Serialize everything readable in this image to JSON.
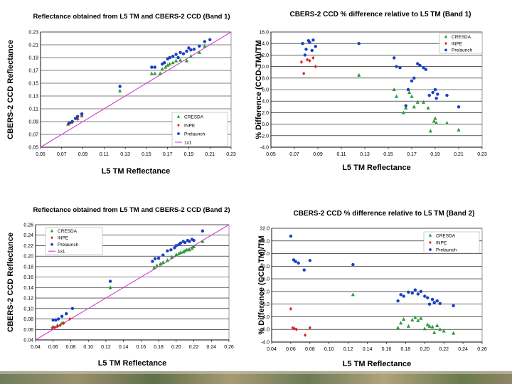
{
  "colors": {
    "cresda": "#2e9a3a",
    "inpe": "#e02020",
    "prelaunch": "#1a3fc4",
    "onexone": "#d040d0",
    "grid": "#000000",
    "plot_bg": "#ffffff"
  },
  "chart_data": [
    {
      "type": "scatter",
      "title": "Reflectance obtained from L5 TM and CBERS-2 CCD (Band 1)",
      "xlabel": "L5 TM Reflectance",
      "ylabel": "CBERS-2 CCD Reflectance",
      "xlim": [
        0.05,
        0.23
      ],
      "ylim": [
        0.05,
        0.23
      ],
      "xticks": [
        "0.05",
        "0.07",
        "0.09",
        "0.11",
        "0.13",
        "0.15",
        "0.17",
        "0.19",
        "0.21",
        "0.23"
      ],
      "yticks": [
        "0.05",
        "0.07",
        "0.09",
        "0.11",
        "0.13",
        "0.15",
        "0.17",
        "0.19",
        "0.21",
        "0.23"
      ],
      "legend": {
        "position": "bottom-right",
        "entries": [
          "CRESDA",
          "INPE",
          "Prelaunch",
          "1x1"
        ]
      },
      "line_1x1": true,
      "series": [
        {
          "name": "CRESDA",
          "marker": "triangle",
          "x": [
            0.076,
            0.079,
            0.085,
            0.089,
            0.125,
            0.155,
            0.158,
            0.163,
            0.165,
            0.168,
            0.17,
            0.172,
            0.175,
            0.178,
            0.182,
            0.188,
            0.192,
            0.2,
            0.205
          ],
          "y": [
            0.086,
            0.089,
            0.095,
            0.099,
            0.138,
            0.165,
            0.165,
            0.165,
            0.172,
            0.175,
            0.178,
            0.18,
            0.182,
            0.185,
            0.186,
            0.185,
            0.192,
            0.198,
            0.208
          ]
        },
        {
          "name": "INPE",
          "marker": "diamond",
          "x": [
            0.076,
            0.078,
            0.08,
            0.085,
            0.089
          ],
          "y": [
            0.086,
            0.088,
            0.09,
            0.094,
            0.1
          ]
        },
        {
          "name": "Prelaunch",
          "marker": "circle",
          "x": [
            0.077,
            0.08,
            0.083,
            0.085,
            0.089,
            0.125,
            0.155,
            0.158,
            0.165,
            0.167,
            0.17,
            0.172,
            0.175,
            0.178,
            0.18,
            0.182,
            0.185,
            0.188,
            0.19,
            0.192,
            0.195,
            0.2,
            0.205,
            0.21
          ],
          "y": [
            0.088,
            0.09,
            0.095,
            0.098,
            0.102,
            0.145,
            0.175,
            0.175,
            0.18,
            0.182,
            0.188,
            0.19,
            0.192,
            0.195,
            0.19,
            0.198,
            0.196,
            0.2,
            0.205,
            0.202,
            0.203,
            0.208,
            0.215,
            0.218
          ]
        }
      ]
    },
    {
      "type": "scatter",
      "title": "CBERS-2 CCD % difference relative to L5 TM (Band 1)",
      "xlabel": "L5 TM Reflectance",
      "ylabel": "% Difference (CCD-TM)/TM",
      "xlim": [
        0.05,
        0.23
      ],
      "ylim": [
        -4.0,
        16.0
      ],
      "xticks": [
        "0.05",
        "0.07",
        "0.09",
        "0.11",
        "0.13",
        "0.15",
        "0.17",
        "0.19",
        "0.21",
        "0.23"
      ],
      "yticks": [
        "-4.0",
        "-2.0",
        "0.0",
        "2.0",
        "4.0",
        "6.0",
        "8.0",
        "10.0",
        "12.0",
        "14.0",
        "16.0"
      ],
      "legend": {
        "position": "top-right",
        "entries": [
          "CRESDA",
          "INPE",
          "Prelaunch"
        ]
      },
      "line_1x1": false,
      "series": [
        {
          "name": "CRESDA",
          "marker": "triangle",
          "x": [
            0.125,
            0.155,
            0.157,
            0.163,
            0.165,
            0.168,
            0.17,
            0.172,
            0.175,
            0.18,
            0.184,
            0.186,
            0.189,
            0.19,
            0.191,
            0.2,
            0.21
          ],
          "y": [
            8.5,
            6.0,
            4.8,
            2.0,
            2.8,
            5.5,
            4.8,
            3.0,
            3.8,
            3.8,
            2.8,
            -1.2,
            0.5,
            1.0,
            0.2,
            0.2,
            -1.0
          ]
        },
        {
          "name": "INPE",
          "marker": "diamond",
          "x": [
            0.076,
            0.078,
            0.081,
            0.083,
            0.086,
            0.088
          ],
          "y": [
            10.8,
            8.8,
            11.2,
            11.0,
            11.5,
            10.0
          ]
        },
        {
          "name": "Prelaunch",
          "marker": "circle",
          "x": [
            0.077,
            0.079,
            0.08,
            0.082,
            0.083,
            0.085,
            0.086,
            0.088,
            0.125,
            0.155,
            0.157,
            0.16,
            0.165,
            0.167,
            0.17,
            0.172,
            0.175,
            0.177,
            0.18,
            0.182,
            0.185,
            0.188,
            0.19,
            0.191,
            0.192,
            0.2,
            0.21
          ],
          "y": [
            14.0,
            12.0,
            13.0,
            14.5,
            14.2,
            12.8,
            14.6,
            13.5,
            14.0,
            11.5,
            10.0,
            9.8,
            3.2,
            6.0,
            7.5,
            8.0,
            10.5,
            10.2,
            9.8,
            9.5,
            5.0,
            5.5,
            6.0,
            4.5,
            5.2,
            5.0,
            3.0
          ]
        }
      ]
    },
    {
      "type": "scatter",
      "title": "Reflectance obtained from L5 TM and CBERS-2 CCD (Band 2)",
      "xlabel": "L5 TM Reflectance",
      "ylabel": "CBERS-2 CCD Reflectance",
      "xlim": [
        0.04,
        0.26
      ],
      "ylim": [
        0.04,
        0.26
      ],
      "xticks": [
        "0.04",
        "0.06",
        "0.08",
        "0.10",
        "0.12",
        "0.14",
        "0.16",
        "0.18",
        "0.20",
        "0.22",
        "0.24",
        "0.26"
      ],
      "yticks": [
        "0.04",
        "0.06",
        "0.08",
        "0.10",
        "0.12",
        "0.14",
        "0.16",
        "0.18",
        "0.20",
        "0.22",
        "0.24",
        "0.26"
      ],
      "legend": {
        "position": "top-left",
        "entries": [
          "CRESDA",
          "INPE",
          "Prelaunch",
          "1x1"
        ]
      },
      "line_1x1": true,
      "series": [
        {
          "name": "CRESDA",
          "marker": "triangle",
          "x": [
            0.06,
            0.065,
            0.07,
            0.125,
            0.175,
            0.178,
            0.182,
            0.185,
            0.19,
            0.195,
            0.2,
            0.203,
            0.205,
            0.208,
            0.21,
            0.212,
            0.215,
            0.218,
            0.22,
            0.23
          ],
          "y": [
            0.065,
            0.068,
            0.072,
            0.14,
            0.178,
            0.182,
            0.185,
            0.188,
            0.192,
            0.198,
            0.203,
            0.205,
            0.207,
            0.208,
            0.21,
            0.212,
            0.212,
            0.215,
            0.218,
            0.228
          ]
        },
        {
          "name": "INPE",
          "marker": "diamond",
          "x": [
            0.059,
            0.062,
            0.065,
            0.068,
            0.072,
            0.079
          ],
          "y": [
            0.063,
            0.064,
            0.066,
            0.068,
            0.072,
            0.08
          ]
        },
        {
          "name": "Prelaunch",
          "marker": "circle",
          "x": [
            0.06,
            0.063,
            0.066,
            0.07,
            0.075,
            0.082,
            0.125,
            0.173,
            0.176,
            0.18,
            0.185,
            0.19,
            0.194,
            0.198,
            0.2,
            0.203,
            0.205,
            0.208,
            0.21,
            0.213,
            0.215,
            0.218,
            0.22,
            0.23
          ],
          "y": [
            0.078,
            0.078,
            0.08,
            0.085,
            0.09,
            0.1,
            0.152,
            0.19,
            0.195,
            0.196,
            0.202,
            0.21,
            0.212,
            0.216,
            0.22,
            0.222,
            0.225,
            0.228,
            0.226,
            0.23,
            0.228,
            0.232,
            0.23,
            0.248
          ]
        }
      ]
    },
    {
      "type": "scatter",
      "title": "CBERS-2 CCD % difference relative to L5 TM (Band 2)",
      "xlabel": "L5 TM Reflectance",
      "ylabel": "% Difference (CCD-TM)/TM",
      "xlim": [
        0.04,
        0.26
      ],
      "ylim": [
        -4.0,
        32.0
      ],
      "xticks": [
        "0.04",
        "0.06",
        "0.08",
        "0.10",
        "0.12",
        "0.14",
        "0.16",
        "0.18",
        "0.20",
        "0.22",
        "0.24",
        "0.26"
      ],
      "yticks": [
        "-4.0",
        "0.0",
        "4.0",
        "8.0",
        "12.0",
        "16.0",
        "20.0",
        "24.0",
        "28.0",
        "32.0"
      ],
      "legend": {
        "position": "top-right",
        "entries": [
          "CRESDA",
          "INPE",
          "Prelaunch"
        ]
      },
      "line_1x1": false,
      "series": [
        {
          "name": "CRESDA",
          "marker": "triangle",
          "x": [
            0.125,
            0.172,
            0.175,
            0.178,
            0.183,
            0.187,
            0.19,
            0.193,
            0.196,
            0.2,
            0.203,
            0.205,
            0.208,
            0.21,
            0.213,
            0.216,
            0.22,
            0.23
          ],
          "y": [
            11.0,
            0.5,
            2.0,
            3.2,
            1.0,
            3.0,
            3.8,
            2.8,
            3.5,
            0.2,
            1.5,
            1.0,
            0.8,
            -1.0,
            1.2,
            0.0,
            -0.5,
            -1.2
          ]
        },
        {
          "name": "INPE",
          "marker": "diamond",
          "x": [
            0.06,
            0.062,
            0.064,
            0.066,
            0.075,
            0.08
          ],
          "y": [
            6.5,
            0.5,
            0.2,
            0.0,
            -1.8,
            0.5
          ]
        },
        {
          "name": "Prelaunch",
          "marker": "circle",
          "x": [
            0.06,
            0.063,
            0.065,
            0.068,
            0.074,
            0.08,
            0.125,
            0.172,
            0.175,
            0.178,
            0.183,
            0.187,
            0.19,
            0.193,
            0.196,
            0.2,
            0.203,
            0.205,
            0.208,
            0.21,
            0.213,
            0.216,
            0.23
          ],
          "y": [
            29.5,
            22.0,
            21.5,
            21.0,
            18.8,
            21.8,
            20.5,
            9.0,
            11.0,
            10.5,
            11.8,
            11.5,
            12.5,
            11.2,
            12.0,
            10.5,
            10.0,
            8.0,
            9.5,
            8.5,
            9.0,
            8.2,
            7.5
          ]
        }
      ]
    }
  ]
}
